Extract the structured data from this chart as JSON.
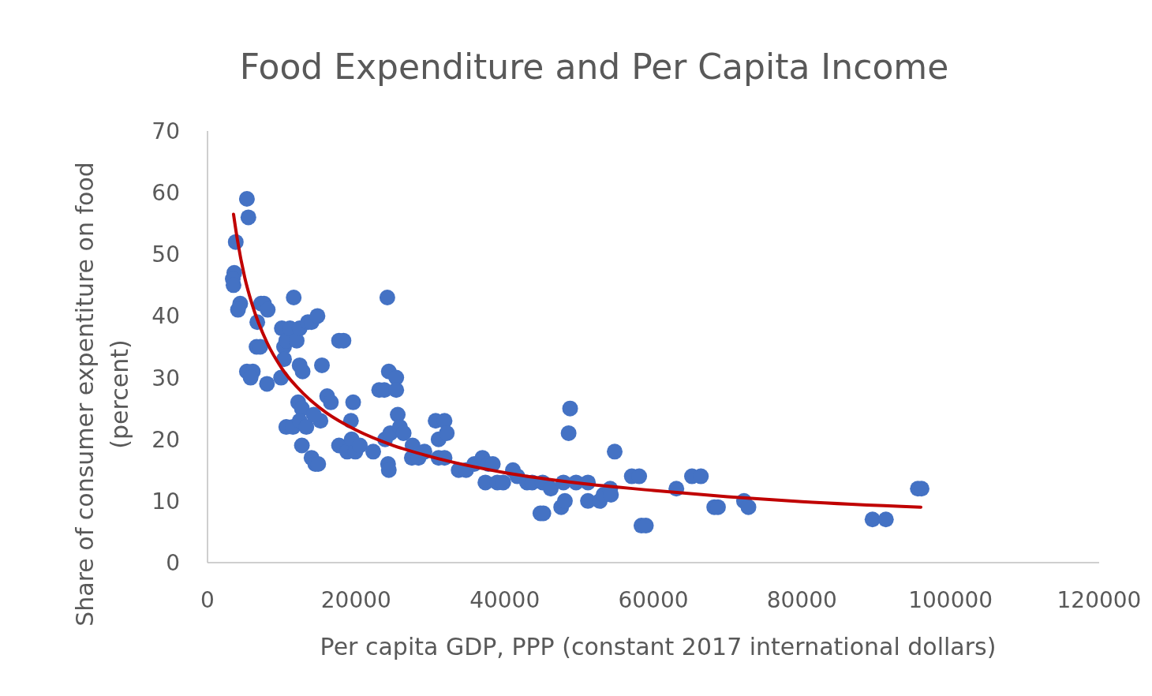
{
  "chart_data": {
    "type": "scatter",
    "title": "Food Expenditure and Per Capita Income",
    "xlabel": "Per capita GDP, PPP (constant 2017 international dollars)",
    "ylabel": "Share of consumer expentiture on food (percent)",
    "xlim": [
      0,
      120000
    ],
    "xticks": [
      0,
      20000,
      40000,
      60000,
      80000,
      100000,
      120000
    ],
    "ylim": [
      0,
      70
    ],
    "yticks": [
      0,
      10,
      20,
      30,
      40,
      50,
      60,
      70
    ],
    "grid": false,
    "series": [
      {
        "color": "#4472c4",
        "marker": "circle",
        "x": [
          5300,
          5500,
          3800,
          3600,
          3400,
          3500,
          4400,
          4100,
          5300,
          6100,
          5800,
          6600,
          7100,
          6700,
          7200,
          7600,
          8100,
          8000,
          10000,
          10300,
          9900,
          10300,
          10600,
          10600,
          11500,
          11600,
          11100,
          12000,
          12400,
          13500,
          14000,
          14800,
          12400,
          12800,
          12200,
          12700,
          12400,
          13300,
          12700,
          14000,
          14500,
          14900,
          15400,
          15200,
          14300,
          16100,
          16600,
          17700,
          18300,
          17700,
          18800,
          19600,
          19300,
          19400,
          19900,
          20500,
          22300,
          23100,
          23800,
          24200,
          23900,
          24600,
          24400,
          25400,
          25400,
          24300,
          24400,
          25600,
          25900,
          26400,
          27500,
          28400,
          27600,
          29200,
          30700,
          31900,
          31100,
          32200,
          31100,
          31900,
          33800,
          34800,
          35900,
          37000,
          37800,
          38400,
          37400,
          39000,
          39800,
          41100,
          41700,
          43000,
          43700,
          44800,
          45200,
          45100,
          46200,
          47600,
          48100,
          47900,
          48800,
          48600,
          49600,
          51200,
          51200,
          52800,
          53300,
          54200,
          54300,
          54800,
          57100,
          58100,
          58400,
          59000,
          63100,
          65200,
          66400,
          68200,
          68700,
          72200,
          72800,
          89500,
          91300,
          95600,
          96100
        ],
        "values": [
          59,
          56,
          52,
          47,
          46,
          45,
          42,
          41,
          31,
          31,
          30,
          35,
          35,
          39,
          42,
          42,
          41,
          29,
          38,
          35,
          30,
          33,
          36,
          22,
          22,
          43,
          38,
          36,
          38,
          39,
          39,
          40,
          32,
          31,
          26,
          25,
          23,
          22,
          19,
          17,
          16,
          16,
          32,
          23,
          24,
          27,
          26,
          36,
          36,
          19,
          18,
          26,
          23,
          20,
          18,
          19,
          18,
          28,
          28,
          43,
          20,
          21,
          31,
          30,
          28,
          16,
          15,
          24,
          22,
          21,
          17,
          17,
          19,
          18,
          23,
          23,
          20,
          21,
          17,
          17,
          15,
          15,
          16,
          17,
          16,
          16,
          13,
          13,
          13,
          15,
          14,
          13,
          13,
          8,
          8,
          13,
          12,
          9,
          10,
          13,
          25,
          21,
          13,
          13,
          10,
          10,
          11,
          12,
          11,
          18,
          14,
          14,
          6,
          6,
          12,
          14,
          14,
          9,
          9,
          10,
          9,
          7,
          7,
          12,
          12
        ]
      },
      {
        "type": "line",
        "color": "#c00000",
        "marker": "none",
        "line_style": "solid",
        "x": [
          3500,
          4000,
          5000,
          6000,
          8000,
          10000,
          13000,
          16000,
          20000,
          25000,
          30000,
          40000,
          50000,
          60000,
          70000,
          80000,
          96000
        ],
        "values": [
          56.5,
          52.5,
          46.3,
          41.9,
          35.7,
          31.5,
          27.3,
          24.3,
          21.5,
          19.0,
          17.2,
          14.6,
          12.9,
          11.7,
          10.7,
          9.9,
          9.0
        ]
      }
    ]
  }
}
